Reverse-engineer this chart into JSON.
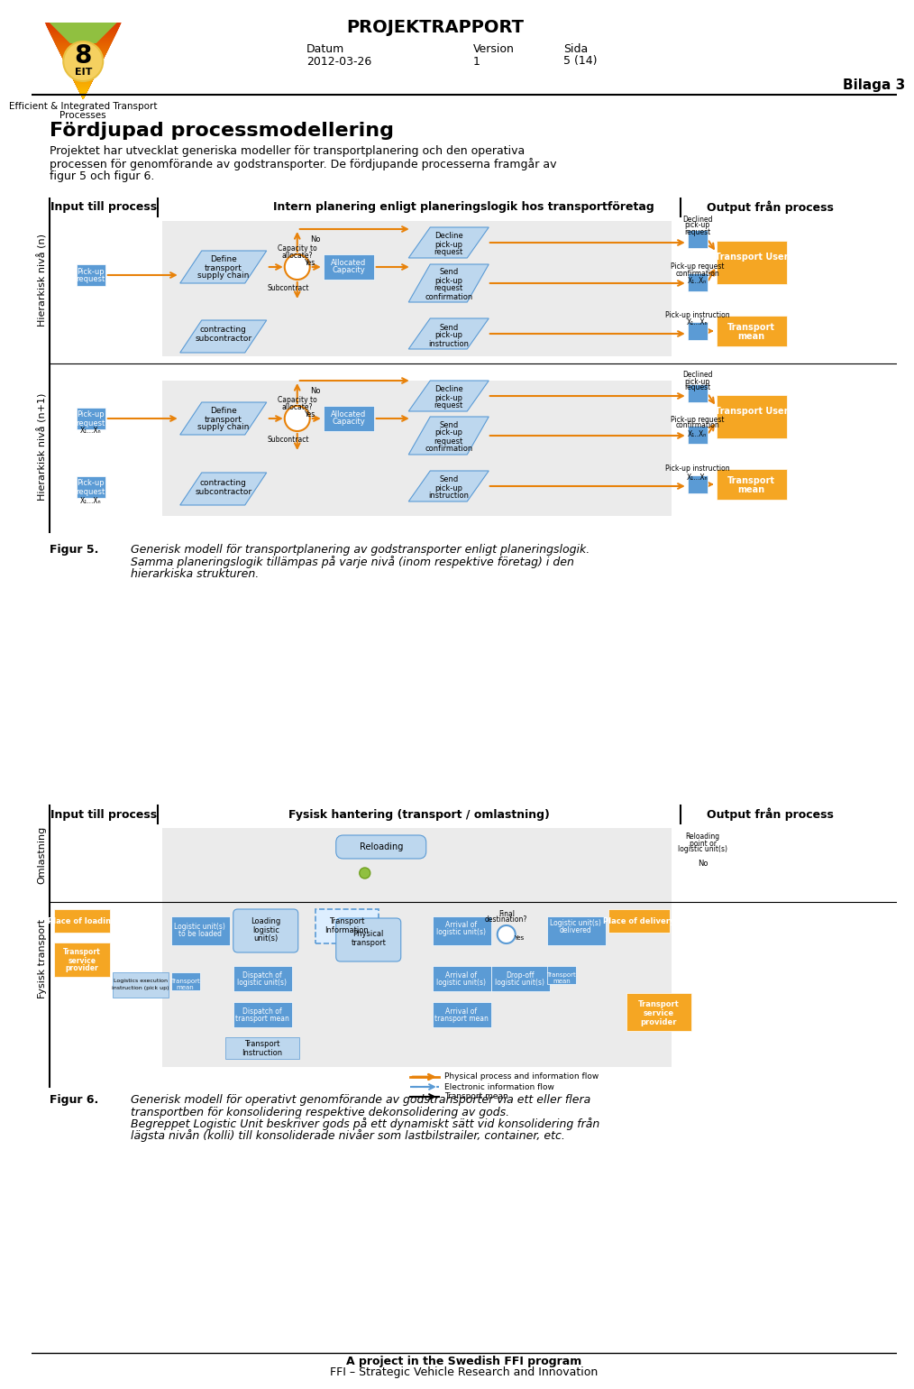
{
  "title": "PROJEKTRAPPORT",
  "datum_label": "Datum",
  "datum_value": "2012-03-26",
  "version_label": "Version",
  "version_value": "1",
  "sida_label": "Sida",
  "sida_value": "5 (14)",
  "bilaga": "Bilaga 3",
  "logo_text_line1": "Efficient & Integrated Transport",
  "logo_text_line2": "Processes",
  "logo_number": "8",
  "logo_eit": "EIT",
  "section_title": "Fördjupad processmodellering",
  "section_text": "Projektet har utvecklat generiska modeller för transportplanering och den operativa\nprocessen för genomförande av godstransporter. De fördjupande processerna framgår av\nfigur 5 och figur 6.",
  "fig5_label": "Figur 5.",
  "fig5_text": "Generisk modell för transportplanering av godstransporter enligt planeringslogik.\nSamma planeringslogik tillämpas på varje nivå (inom respektive företag) i den\nhierarkiska strukturen.",
  "fig6_label": "Figur 6.",
  "fig6_text": "Generisk modell för operativt genomförande av godstransporter via ett eller flera\ntransportben för konsolidering respektive dekonsolidering av gods.\nBegreppet Logistic Unit beskriver gods på ett dynamiskt sätt vid konsolidering från\nlägsta nivån (kolli) till konsoliderade nivåer som lastbilstrailer, container, etc.",
  "footer_line1": "A project in the Swedish FFI program",
  "footer_line2": "FFI – Strategic Vehicle Research and Innovation",
  "header_col_input": "Input till process",
  "header_col_middle1": "Intern planering enligt planeringslogik hos transportföretag",
  "header_col_output": "Output från process",
  "header_col_middle2": "Fysisk hantering (transport / omlastning)",
  "side_label_n": "Hierarkisk nivå (n)",
  "side_label_n1": "Hierarkisk nivå (n+1)",
  "side_label_omlastning": "Omlastning",
  "side_label_fysisk": "Fysisk transport",
  "orange": "#F5A623",
  "blue_light": "#BDD7EE",
  "blue_mid": "#5B9BD5",
  "gray_bg": "#EBEBEB",
  "white": "#FFFFFF",
  "black": "#000000",
  "orange_dark": "#E8820A",
  "green": "#90C040"
}
